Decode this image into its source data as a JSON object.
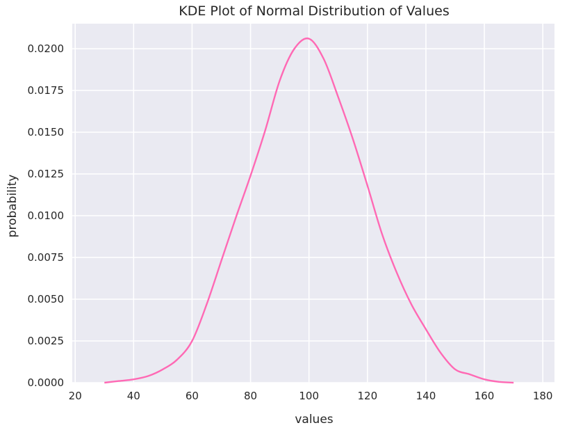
{
  "chart_data": {
    "type": "line",
    "title": "KDE Plot of Normal Distribution of Values",
    "xlabel": "values",
    "ylabel": "probability",
    "xlim": [
      19,
      184
    ],
    "ylim": [
      0,
      0.0215
    ],
    "x_ticks": [
      20,
      40,
      60,
      80,
      100,
      120,
      140,
      160,
      180
    ],
    "y_ticks": [
      0.0,
      0.0025,
      0.005,
      0.0075,
      0.01,
      0.0125,
      0.015,
      0.0175,
      0.02
    ],
    "grid": true,
    "legend": "none",
    "series": [
      {
        "color": "#ff69b4",
        "x": [
          30,
          35,
          40,
          45,
          50,
          55,
          60,
          65,
          70,
          75,
          80,
          85,
          90,
          95,
          100,
          105,
          110,
          115,
          120,
          125,
          130,
          135,
          140,
          145,
          150,
          155,
          160,
          165,
          170
        ],
        "y": [
          0.0,
          0.0001,
          0.0002,
          0.0004,
          0.0008,
          0.0014,
          0.0025,
          0.0047,
          0.0073,
          0.0099,
          0.0124,
          0.0151,
          0.0181,
          0.02,
          0.0206,
          0.0194,
          0.0171,
          0.0146,
          0.0118,
          0.0089,
          0.0066,
          0.0047,
          0.0032,
          0.0018,
          0.0008,
          0.0005,
          0.0002,
          5e-05,
          0.0
        ]
      }
    ]
  },
  "tick_labels": {
    "x": [
      "20",
      "40",
      "60",
      "80",
      "100",
      "120",
      "140",
      "160",
      "180"
    ],
    "y": [
      "0.0000",
      "0.0025",
      "0.0050",
      "0.0075",
      "0.0100",
      "0.0125",
      "0.0150",
      "0.0175",
      "0.0200"
    ]
  }
}
